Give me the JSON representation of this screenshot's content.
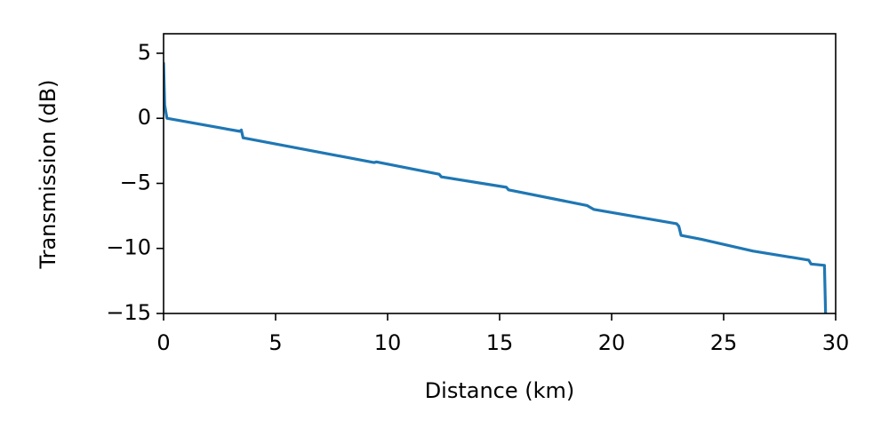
{
  "chart_data": {
    "type": "line",
    "xlabel": "Distance (km)",
    "ylabel": "Transmission (dB)",
    "x": [
      0,
      0.05,
      0.15,
      3.4,
      3.47,
      3.55,
      9.4,
      9.5,
      12.3,
      12.4,
      15.3,
      15.4,
      18.9,
      19.0,
      19.2,
      22.9,
      23.0,
      23.1,
      24.0,
      26.3,
      28.8,
      28.9,
      29.5,
      29.55
    ],
    "series": [
      {
        "color": "#1f77b4",
        "values": [
          4.3,
          1.0,
          0.0,
          -1.0,
          -0.9,
          -1.5,
          -3.4,
          -3.35,
          -4.3,
          -4.5,
          -5.3,
          -5.5,
          -6.7,
          -6.8,
          -7.0,
          -8.1,
          -8.3,
          -9.0,
          -9.3,
          -10.2,
          -10.9,
          -11.2,
          -11.3,
          -15.0
        ]
      }
    ],
    "xlim": [
      0,
      30
    ],
    "ylim": [
      -15,
      6.5
    ],
    "xticks": [
      0,
      5,
      10,
      15,
      20,
      25,
      30
    ],
    "yticks": [
      5,
      0,
      {
        "value": -5,
        "label": "−5"
      },
      {
        "value": -10,
        "label": "−10"
      },
      {
        "value": -15,
        "label": "−15"
      }
    ]
  }
}
